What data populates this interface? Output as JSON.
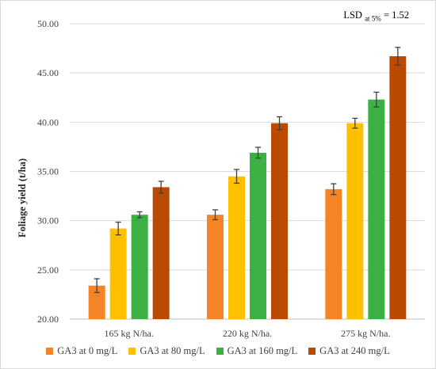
{
  "chart_data": {
    "type": "bar",
    "title": "",
    "xlabel": "",
    "ylabel": "Foliage yield (t/ha)",
    "ylim": [
      20,
      50
    ],
    "yticks": [
      "20.00",
      "25.00",
      "30.00",
      "35.00",
      "40.00",
      "45.00",
      "50.00"
    ],
    "grid": true,
    "legend_position": "bottom",
    "categories": [
      "165 kg N/ha.",
      "220 kg N/ha.",
      "275 kg N/ha."
    ],
    "series": [
      {
        "name": "GA3 at 0 mg/L",
        "color": "#f58426",
        "values": [
          23.4,
          30.6,
          33.2
        ],
        "errors": [
          0.7,
          0.5,
          0.55
        ]
      },
      {
        "name": "GA3 at 80 mg/L",
        "color": "#ffc000",
        "values": [
          29.2,
          34.5,
          39.9
        ],
        "errors": [
          0.65,
          0.7,
          0.5
        ]
      },
      {
        "name": "GA3 at 160 mg/L",
        "color": "#3cb043",
        "values": [
          30.6,
          36.9,
          42.3
        ],
        "errors": [
          0.3,
          0.55,
          0.75
        ]
      },
      {
        "name": "GA3 at 240 mg/L",
        "color": "#b94a00",
        "values": [
          33.4,
          39.9,
          46.7
        ],
        "errors": [
          0.6,
          0.65,
          0.9
        ]
      }
    ],
    "annotation": {
      "main": "LSD",
      "sub": "at 5%",
      "value": "= 1.52"
    }
  }
}
